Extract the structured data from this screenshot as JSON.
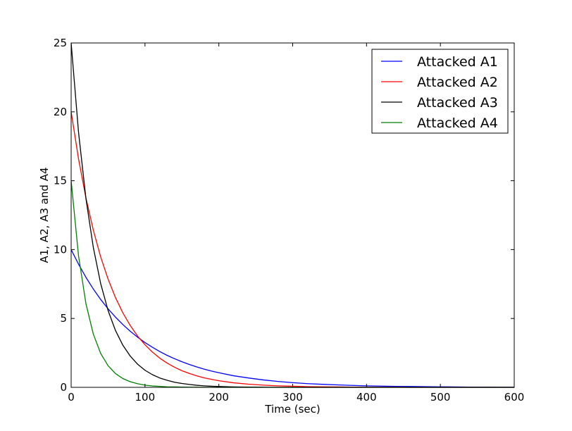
{
  "chart_data": {
    "type": "line",
    "title": "",
    "xlabel": "Time (sec)",
    "ylabel": "A1, A2, A3 and A4",
    "xlim": [
      0,
      600
    ],
    "ylim": [
      0,
      25
    ],
    "xticks": [
      0,
      100,
      200,
      300,
      400,
      500,
      600
    ],
    "yticks": [
      0,
      5,
      10,
      15,
      20,
      25
    ],
    "grid": false,
    "legend_position": "top-right",
    "x": [
      0,
      10,
      20,
      30,
      40,
      50,
      60,
      70,
      80,
      90,
      100,
      110,
      120,
      130,
      140,
      150,
      160,
      170,
      180,
      190,
      200,
      220,
      240,
      260,
      280,
      300,
      320,
      340,
      360,
      380,
      400,
      420,
      440,
      460,
      480,
      500,
      520,
      540,
      560,
      580,
      600
    ],
    "series": [
      {
        "name": "Attacked A1",
        "color": "#0000ff",
        "values": [
          10.0,
          8.94,
          7.99,
          7.14,
          6.38,
          5.7,
          5.1,
          4.56,
          4.07,
          3.64,
          3.25,
          2.91,
          2.6,
          2.32,
          2.08,
          1.86,
          1.66,
          1.48,
          1.32,
          1.18,
          1.06,
          0.84,
          0.68,
          0.54,
          0.43,
          0.34,
          0.27,
          0.22,
          0.18,
          0.14,
          0.11,
          0.09,
          0.07,
          0.06,
          0.05,
          0.04,
          0.03,
          0.02,
          0.02,
          0.01,
          0.01
        ]
      },
      {
        "name": "Attacked A2",
        "color": "#ff0000",
        "values": [
          20.0,
          16.59,
          13.76,
          11.42,
          9.47,
          7.86,
          6.52,
          5.41,
          4.49,
          3.72,
          3.09,
          2.56,
          2.12,
          1.76,
          1.46,
          1.21,
          1.01,
          0.84,
          0.69,
          0.58,
          0.48,
          0.33,
          0.23,
          0.16,
          0.11,
          0.08,
          0.05,
          0.04,
          0.03,
          0.02,
          0.01,
          0.01,
          0.01,
          0.0,
          0.0,
          0.0,
          0.0,
          0.0,
          0.0,
          0.0,
          0.0
        ]
      },
      {
        "name": "Attacked A3",
        "color": "#000000",
        "values": [
          25.0,
          18.52,
          13.72,
          10.16,
          7.53,
          5.58,
          4.13,
          3.06,
          2.27,
          1.68,
          1.24,
          0.92,
          0.68,
          0.51,
          0.37,
          0.28,
          0.21,
          0.15,
          0.11,
          0.08,
          0.06,
          0.03,
          0.02,
          0.01,
          0.0,
          0.0,
          0.0,
          0.0,
          0.0,
          0.0,
          0.0,
          0.0,
          0.0,
          0.0,
          0.0,
          0.0,
          0.0,
          0.0,
          0.0,
          0.0,
          0.0
        ]
      },
      {
        "name": "Attacked A4",
        "color": "#008000",
        "values": [
          15.0,
          9.55,
          6.08,
          3.87,
          2.46,
          1.57,
          1.0,
          0.64,
          0.41,
          0.26,
          0.16,
          0.1,
          0.07,
          0.04,
          0.03,
          0.02,
          0.01,
          0.01,
          0.0,
          0.0,
          0.0,
          0.0,
          0.0,
          0.0,
          0.0,
          0.0,
          0.0,
          0.0,
          0.0,
          0.0,
          0.0,
          0.0,
          0.0,
          0.0,
          0.0,
          0.0,
          0.0,
          0.0,
          0.0,
          0.0,
          0.0
        ]
      }
    ]
  }
}
